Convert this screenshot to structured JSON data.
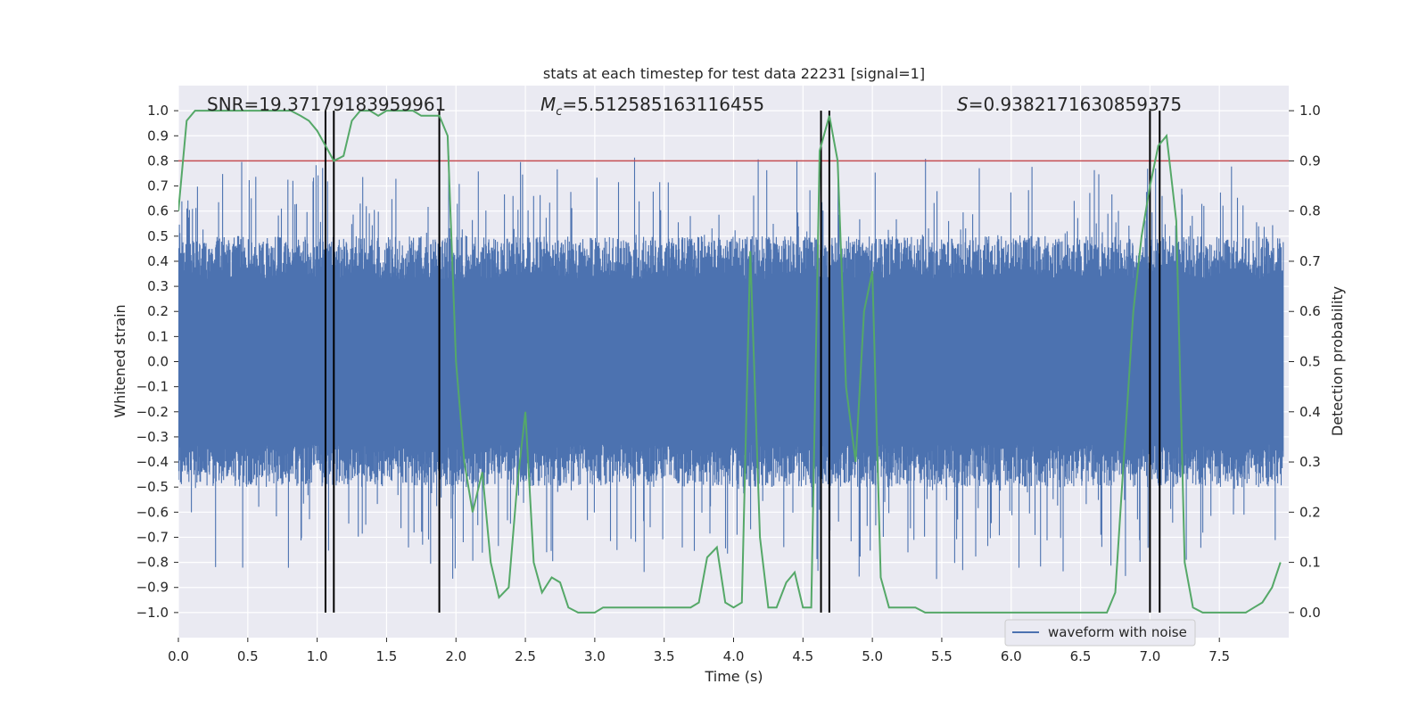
{
  "chart_data": {
    "type": "line",
    "title": "stats at each timestep for test data 22231 [signal=1]",
    "xlabel": "Time (s)",
    "ylabel": "Whitened strain",
    "y2label": "Detection probability",
    "xlim": [
      0.0,
      8.0
    ],
    "ylim": [
      -1.1,
      1.1
    ],
    "y2lim": [
      -0.05,
      1.05
    ],
    "xticks": [
      "0.0",
      "0.5",
      "1.0",
      "1.5",
      "2.0",
      "2.5",
      "3.0",
      "3.5",
      "4.0",
      "4.5",
      "5.0",
      "5.5",
      "6.0",
      "6.5",
      "7.0",
      "7.5"
    ],
    "yticks": [
      "1.0",
      "0.9",
      "0.8",
      "0.7",
      "0.6",
      "0.5",
      "0.4",
      "0.3",
      "0.2",
      "0.1",
      "0.0",
      "-0.1",
      "-0.2",
      "-0.3",
      "-0.4",
      "-0.5",
      "-0.6",
      "-0.7",
      "-0.8",
      "-0.9",
      "-1.0"
    ],
    "y2ticks": [
      "1.0",
      "0.9",
      "0.8",
      "0.7",
      "0.6",
      "0.5",
      "0.4",
      "0.3",
      "0.2",
      "0.1",
      "0.0"
    ],
    "threshold": 0.9,
    "annotations": {
      "snr": "SNR=19.37179183959961",
      "mc_symbol": "M",
      "mc_sub": "c",
      "mc_value": "=5.512585163116455",
      "s_symbol": "S",
      "s_value": "=0.9382171630859375"
    },
    "vlines": [
      1.06,
      1.12,
      1.88,
      4.63,
      4.69,
      7.0,
      7.07
    ],
    "legend": {
      "label": "waveform with noise",
      "position": "lower-right"
    },
    "series": [
      {
        "name": "Detection probability",
        "axis": "right",
        "x": [
          0.0,
          0.06,
          0.12,
          0.19,
          0.25,
          0.31,
          0.38,
          0.44,
          0.5,
          0.56,
          0.62,
          0.69,
          0.75,
          0.81,
          0.88,
          0.94,
          1.0,
          1.06,
          1.12,
          1.19,
          1.25,
          1.31,
          1.38,
          1.44,
          1.5,
          1.56,
          1.62,
          1.69,
          1.75,
          1.81,
          1.88,
          1.94,
          2.0,
          2.06,
          2.12,
          2.19,
          2.25,
          2.31,
          2.38,
          2.44,
          2.5,
          2.56,
          2.62,
          2.69,
          2.75,
          2.81,
          2.88,
          2.94,
          3.0,
          3.06,
          3.12,
          3.19,
          3.25,
          3.31,
          3.38,
          3.44,
          3.5,
          3.56,
          3.62,
          3.69,
          3.75,
          3.81,
          3.88,
          3.94,
          4.0,
          4.06,
          4.12,
          4.19,
          4.25,
          4.31,
          4.38,
          4.44,
          4.5,
          4.56,
          4.62,
          4.69,
          4.75,
          4.81,
          4.88,
          4.94,
          5.0,
          5.06,
          5.12,
          5.19,
          5.25,
          5.31,
          5.38,
          5.44,
          5.5,
          5.56,
          5.62,
          5.69,
          5.75,
          5.81,
          5.88,
          5.94,
          6.0,
          6.06,
          6.12,
          6.19,
          6.25,
          6.31,
          6.38,
          6.44,
          6.5,
          6.56,
          6.62,
          6.69,
          6.75,
          6.81,
          6.88,
          6.94,
          7.0,
          7.06,
          7.12,
          7.19,
          7.25,
          7.31,
          7.38,
          7.44,
          7.5,
          7.56,
          7.62,
          7.69,
          7.75,
          7.81,
          7.88,
          7.94
        ],
        "values": [
          0.8,
          0.98,
          1.0,
          1.0,
          1.0,
          1.0,
          1.0,
          1.0,
          1.0,
          1.0,
          1.0,
          1.0,
          1.0,
          1.0,
          0.99,
          0.98,
          0.96,
          0.93,
          0.9,
          0.91,
          0.98,
          1.0,
          1.0,
          0.99,
          1.0,
          1.0,
          1.0,
          1.0,
          0.99,
          0.99,
          0.99,
          0.95,
          0.5,
          0.3,
          0.2,
          0.28,
          0.1,
          0.03,
          0.05,
          0.25,
          0.4,
          0.1,
          0.04,
          0.07,
          0.06,
          0.01,
          0.0,
          0.0,
          0.0,
          0.01,
          0.01,
          0.01,
          0.01,
          0.01,
          0.01,
          0.01,
          0.01,
          0.01,
          0.01,
          0.01,
          0.02,
          0.11,
          0.13,
          0.02,
          0.01,
          0.02,
          0.72,
          0.15,
          0.01,
          0.01,
          0.06,
          0.08,
          0.01,
          0.01,
          0.92,
          0.99,
          0.9,
          0.45,
          0.3,
          0.6,
          0.68,
          0.07,
          0.01,
          0.01,
          0.01,
          0.01,
          0.0,
          0.0,
          0.0,
          0.0,
          0.0,
          0.0,
          0.0,
          0.0,
          0.0,
          0.0,
          0.0,
          0.0,
          0.0,
          0.0,
          0.0,
          0.0,
          0.0,
          0.0,
          0.0,
          0.0,
          0.0,
          0.0,
          0.04,
          0.3,
          0.6,
          0.75,
          0.85,
          0.93,
          0.95,
          0.78,
          0.1,
          0.01,
          0.0,
          0.0,
          0.0,
          0.0,
          0.0,
          0.0,
          0.01,
          0.02,
          0.05,
          0.1
        ]
      },
      {
        "name": "waveform with noise",
        "axis": "left",
        "x": [
          0.0,
          7.96
        ],
        "values": [
          0.0,
          0.0
        ]
      }
    ],
    "colors": {
      "background": "#eaeaf2",
      "grid": "#ffffff",
      "waveform": "#4c72b0",
      "probability": "#55a868",
      "threshold": "#c44e52",
      "vline": "#000000"
    }
  }
}
